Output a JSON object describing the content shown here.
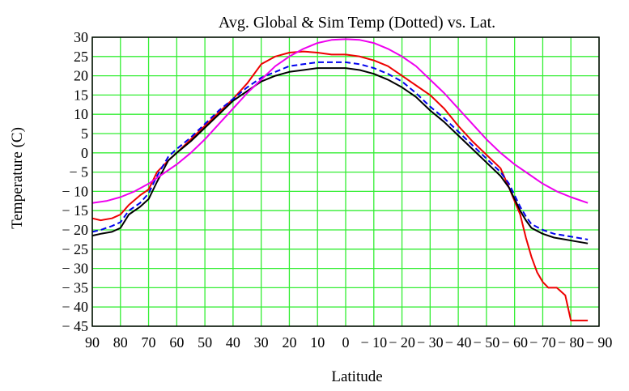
{
  "chart_data": {
    "type": "line",
    "title": "Avg. Global & Sim Temp (Dotted) vs. Lat.",
    "xlabel": "Latitude",
    "ylabel": "Temperature (C)",
    "xlim": [
      90,
      -90
    ],
    "ylim": [
      -45,
      30
    ],
    "grid": true,
    "grid_color": "#33ee33",
    "x_ticks": [
      90,
      80,
      70,
      60,
      50,
      40,
      30,
      20,
      10,
      0,
      -10,
      -20,
      -30,
      -40,
      -50,
      -60,
      -70,
      -80,
      -90
    ],
    "x_tick_labels": [
      "90",
      "80",
      "70",
      "60",
      "50",
      "40",
      "30",
      "20",
      "10",
      "0",
      "− 10",
      "− 20",
      "− 30",
      "− 40",
      "− 50",
      "− 60",
      "− 70",
      "− 80",
      "− 90"
    ],
    "y_ticks": [
      30,
      25,
      20,
      15,
      10,
      5,
      0,
      -5,
      -10,
      -15,
      -20,
      -25,
      -30,
      -35,
      -40,
      -45
    ],
    "y_tick_labels": [
      "30",
      "25",
      "20",
      "15",
      "10",
      "5",
      "0",
      "− 5",
      "− 10",
      "− 15",
      "− 20",
      "− 25",
      "− 30",
      "− 35",
      "− 40",
      "− 45"
    ],
    "series": [
      {
        "color": "#ee0000",
        "style": "solid",
        "x": [
          90,
          87,
          83,
          80,
          77,
          73,
          70,
          67,
          63,
          60,
          55,
          50,
          45,
          40,
          35,
          30,
          25,
          20,
          15,
          10,
          5,
          0,
          -5,
          -10,
          -15,
          -20,
          -25,
          -30,
          -35,
          -40,
          -45,
          -50,
          -55,
          -58,
          -62,
          -64,
          -66,
          -68,
          -70,
          -72,
          -75,
          -78,
          -80,
          -83,
          -86
        ],
        "y": [
          -17,
          -17.5,
          -17,
          -16,
          -13.5,
          -11,
          -9.5,
          -5,
          -2,
          0,
          3.5,
          7,
          10.5,
          14,
          18,
          23,
          25,
          26,
          26.3,
          26,
          25.5,
          25.5,
          25,
          24,
          22.5,
          20,
          17.5,
          15,
          11.5,
          7,
          3,
          -0.5,
          -4,
          -9,
          -16,
          -22,
          -27,
          -31,
          -33.5,
          -35,
          -35,
          -37,
          -43.5,
          -43.5,
          -43.5
        ]
      },
      {
        "color": "#000000",
        "style": "solid",
        "x": [
          90,
          87,
          83,
          80,
          77,
          73,
          70,
          67,
          63,
          60,
          55,
          50,
          45,
          40,
          35,
          30,
          25,
          20,
          15,
          10,
          5,
          0,
          -5,
          -10,
          -15,
          -20,
          -25,
          -30,
          -35,
          -40,
          -45,
          -50,
          -55,
          -58,
          -60,
          -62,
          -64,
          -66,
          -70,
          -74,
          -78,
          -82,
          -86
        ],
        "y": [
          -21.5,
          -21,
          -20.5,
          -19.5,
          -16,
          -14,
          -12,
          -7.5,
          -2,
          0,
          3,
          6.5,
          10,
          13.5,
          16,
          18.5,
          20,
          21,
          21.5,
          22,
          22,
          22,
          21.5,
          20.5,
          19,
          17,
          14.5,
          11,
          8,
          4.5,
          1,
          -2.5,
          -6,
          -9,
          -12,
          -15,
          -17.5,
          -19.5,
          -21,
          -22,
          -22.5,
          -23,
          -23.5
        ]
      },
      {
        "color": "#0000ee",
        "style": "dashed",
        "x": [
          90,
          87,
          83,
          80,
          77,
          73,
          70,
          67,
          63,
          60,
          55,
          50,
          45,
          40,
          35,
          30,
          25,
          20,
          15,
          10,
          5,
          0,
          -5,
          -10,
          -15,
          -20,
          -25,
          -30,
          -35,
          -40,
          -45,
          -50,
          -55,
          -58,
          -60,
          -62,
          -64,
          -66,
          -70,
          -74,
          -78,
          -82,
          -86
        ],
        "y": [
          -20.5,
          -20,
          -19,
          -18,
          -15,
          -13,
          -10.5,
          -6,
          -1,
          1,
          4,
          7.5,
          11,
          14,
          17,
          19.5,
          21,
          22.5,
          23,
          23.5,
          23.5,
          23.5,
          23,
          22,
          20.5,
          18.5,
          15.5,
          12,
          9,
          5.5,
          2,
          -1.5,
          -5,
          -8,
          -11,
          -14,
          -16.5,
          -18.5,
          -20,
          -21,
          -21.5,
          -22,
          -22.5
        ]
      },
      {
        "color": "#ee00ee",
        "style": "solid",
        "x": [
          90,
          85,
          80,
          75,
          70,
          65,
          60,
          55,
          50,
          45,
          40,
          35,
          30,
          25,
          20,
          15,
          10,
          5,
          0,
          -5,
          -10,
          -15,
          -20,
          -25,
          -30,
          -35,
          -40,
          -45,
          -50,
          -55,
          -60,
          -65,
          -70,
          -75,
          -80,
          -86
        ],
        "y": [
          -13,
          -12.5,
          -11.5,
          -10,
          -8,
          -5.5,
          -3,
          0,
          3.5,
          7.5,
          11.5,
          15.5,
          19,
          22.5,
          25,
          27,
          28.5,
          29.3,
          29.5,
          29.3,
          28.5,
          27,
          25,
          22.5,
          19,
          15.5,
          11.5,
          7.5,
          3.5,
          0,
          -3,
          -5.5,
          -8,
          -10,
          -11.5,
          -13
        ]
      }
    ]
  }
}
